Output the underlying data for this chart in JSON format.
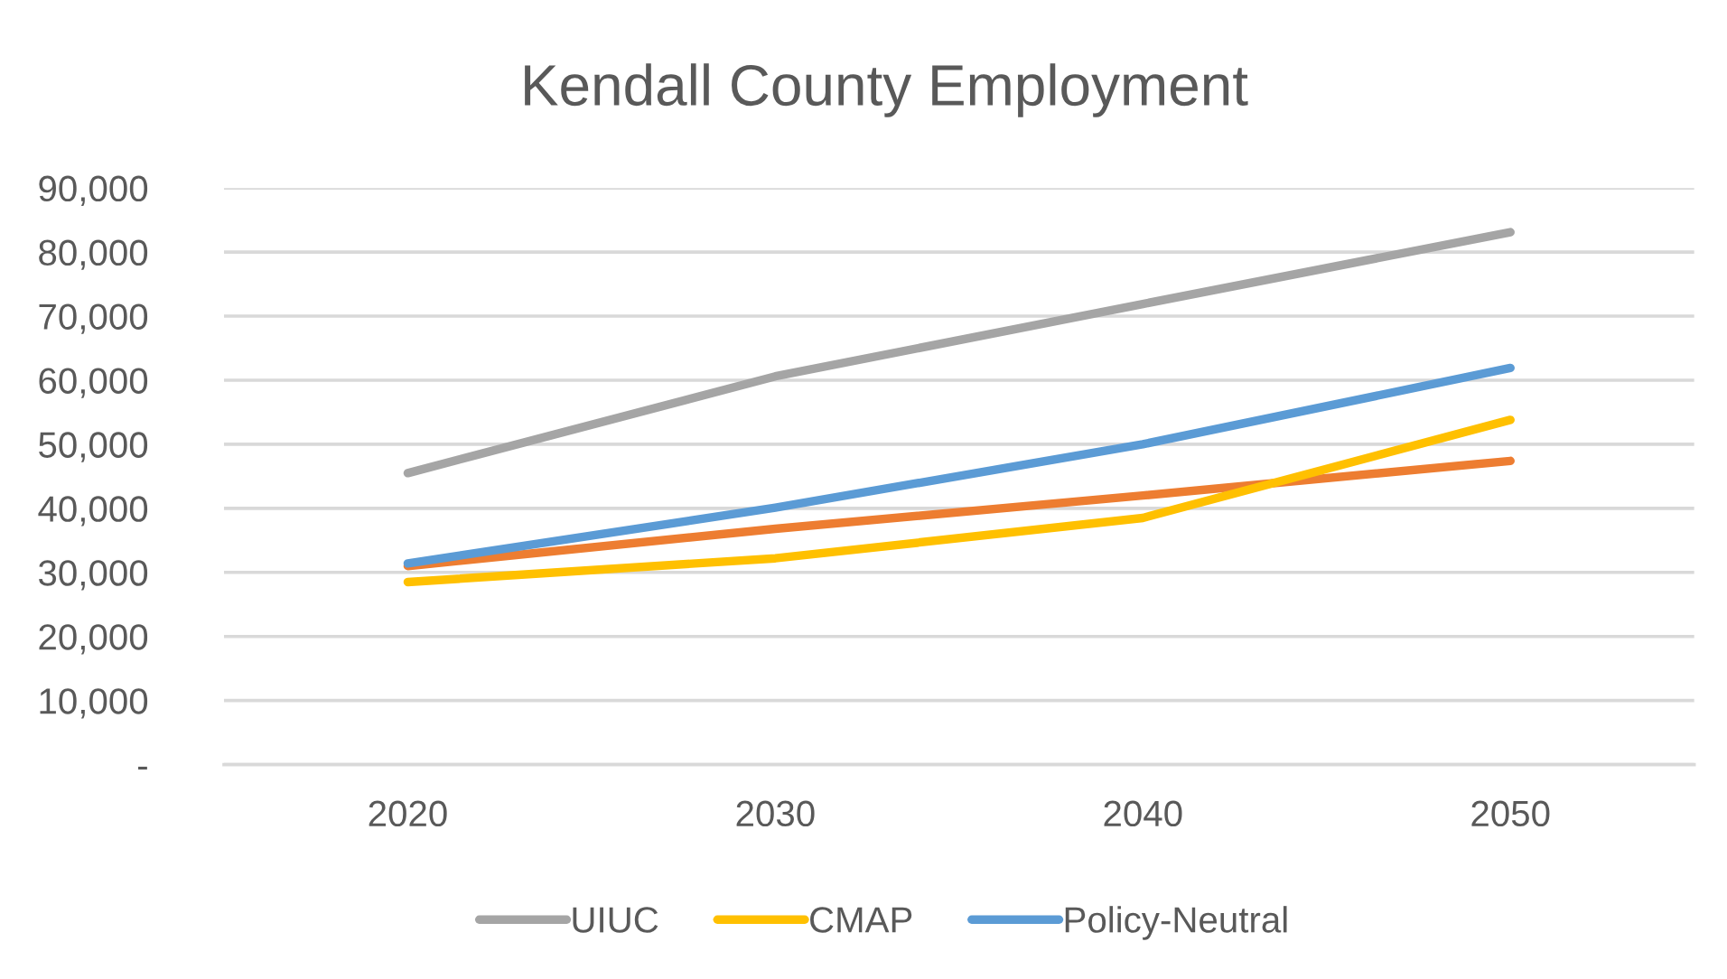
{
  "chart_data": {
    "type": "line",
    "title": "Kendall County Employment",
    "categories": [
      "2020",
      "2030",
      "2040",
      "2050"
    ],
    "series": [
      {
        "color": "#ed7d31",
        "values": [
          31000,
          36800,
          42000,
          47400
        ]
      },
      {
        "name": "UIUC",
        "color": "#a5a5a5",
        "values": [
          45500,
          60600,
          71900,
          83100
        ]
      },
      {
        "name": "CMAP",
        "color": "#ffc000",
        "values": [
          28500,
          32200,
          38500,
          53800
        ]
      },
      {
        "name": "Policy-Neutral",
        "color": "#5b9bd5",
        "values": [
          31400,
          40100,
          50000,
          61900
        ]
      }
    ],
    "ylim": [
      0,
      90000
    ],
    "yticks": [
      {
        "value": 0,
        "label": "-"
      },
      {
        "value": 10000,
        "label": "10,000"
      },
      {
        "value": 20000,
        "label": "20,000"
      },
      {
        "value": 30000,
        "label": "30,000"
      },
      {
        "value": 40000,
        "label": "40,000"
      },
      {
        "value": 50000,
        "label": "50,000"
      },
      {
        "value": 60000,
        "label": "60,000"
      },
      {
        "value": 70000,
        "label": "70,000"
      },
      {
        "value": 80000,
        "label": "80,000"
      },
      {
        "value": 90000,
        "label": "90,000"
      }
    ],
    "grid": "y",
    "legend": "bottom",
    "marker": "none",
    "line_style": "solid"
  }
}
